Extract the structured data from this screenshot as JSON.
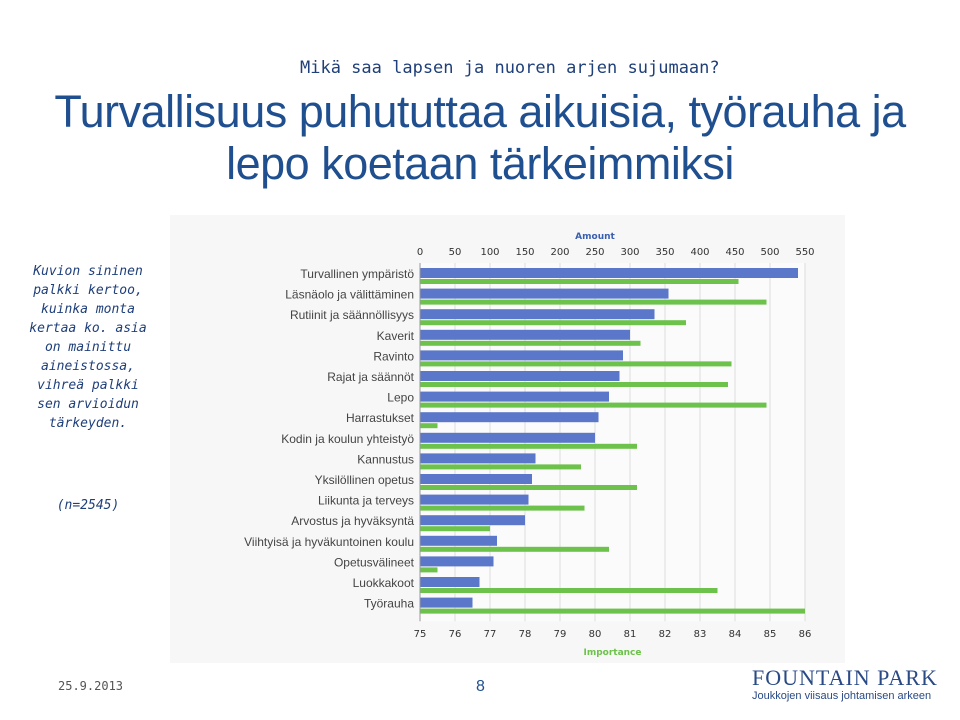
{
  "slide": {
    "subtitle": "Mikä saa lapsen ja nuoren arjen sujumaan?",
    "title": "Turvallisuus puhututtaa aikuisia, työrauha ja lepo koetaan tärkeimmiksi",
    "side_note": "Kuvion sininen palkki kertoo, kuinka monta kertaa ko. asia on mainittu aineistossa, vihreä palkki sen arvioidun tärkeyden.",
    "sample_size": "(n=2545)",
    "date": "25.9.2013",
    "page_number": "8",
    "logo_main": "FOUNTAIN PARK",
    "logo_tagline": "Joukkojen viisaus johtamisen arkeen"
  },
  "chart_data": {
    "type": "bar",
    "orientation": "horizontal",
    "top_axis": {
      "label": "Amount",
      "min": 0,
      "max": 550,
      "ticks": [
        0,
        50,
        100,
        150,
        200,
        250,
        300,
        350,
        400,
        450,
        500,
        550
      ]
    },
    "bottom_axis": {
      "label": "Importance",
      "min": 75,
      "max": 86,
      "ticks": [
        75,
        76,
        77,
        78,
        79,
        80,
        81,
        82,
        83,
        84,
        85,
        86
      ]
    },
    "grid": true,
    "colors": {
      "amount": "#5b77c9",
      "importance": "#6cc24a"
    },
    "categories": [
      "Turvallinen ympäristö",
      "Läsnäolo ja välittäminen",
      "Rutiinit ja säännöllisyys",
      "Kaverit",
      "Ravinto",
      "Rajat ja säännöt",
      "Lepo",
      "Harrastukset",
      "Kodin ja koulun yhteistyö",
      "Kannustus",
      "Yksilöllinen opetus",
      "Liikunta ja terveys",
      "Arvostus ja hyväksyntä",
      "Viihtyisä ja hyväkuntoinen koulu",
      "Opetusvälineet",
      "Luokkakoot",
      "Työrauha"
    ],
    "series": [
      {
        "key": "amount",
        "axis": "top",
        "values": [
          540,
          355,
          335,
          300,
          290,
          285,
          270,
          255,
          250,
          165,
          160,
          155,
          150,
          110,
          105,
          85,
          75
        ]
      },
      {
        "key": "importance",
        "axis": "bottom",
        "values": [
          84.1,
          84.9,
          82.6,
          81.3,
          83.9,
          83.8,
          84.9,
          75.5,
          81.2,
          79.6,
          81.2,
          79.7,
          77.0,
          80.4,
          75.5,
          83.5,
          86.0
        ]
      }
    ]
  }
}
